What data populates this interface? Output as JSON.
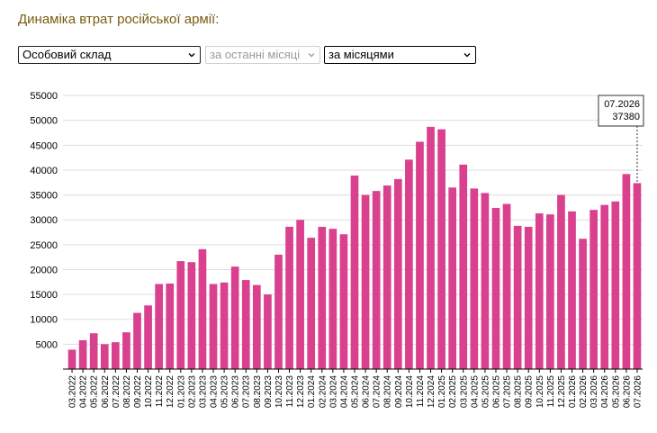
{
  "title": "Динаміка втрат російської армії:",
  "controls": {
    "category": "Особовий склад",
    "period": "за останні місяці",
    "grouping": "за місяцями"
  },
  "colors": {
    "bar": "#d9418f",
    "title": "#7a5c12",
    "grid": "#dddddd"
  },
  "tooltip": {
    "label": "07.2026",
    "value": "37380"
  },
  "chart_data": {
    "type": "bar",
    "title": "",
    "xlabel": "",
    "ylabel": "",
    "ylim": [
      0,
      57000
    ],
    "yticks": [
      5000,
      10000,
      15000,
      20000,
      25000,
      30000,
      35000,
      40000,
      45000,
      50000,
      55000
    ],
    "grid": "horizontal",
    "categories": [
      "03.2022",
      "04.2022",
      "05.2022",
      "06.2022",
      "07.2022",
      "08.2022",
      "09.2022",
      "10.2022",
      "11.2022",
      "12.2022",
      "01.2023",
      "02.2023",
      "03.2023",
      "04.2023",
      "05.2023",
      "06.2023",
      "07.2023",
      "08.2023",
      "09.2023",
      "10.2023",
      "11.2023",
      "12.2023",
      "01.2024",
      "02.2024",
      "03.2024",
      "04.2024",
      "05.2024",
      "06.2024",
      "07.2024",
      "08.2024",
      "09.2024",
      "10.2024",
      "11.2024",
      "12.2024",
      "01.2025",
      "02.2025",
      "03.2025",
      "04.2025",
      "05.2025",
      "06.2025",
      "07.2025",
      "08.2025",
      "09.2025",
      "10.2025",
      "11.2025",
      "12.2025",
      "01.2026",
      "02.2026",
      "03.2026",
      "04.2026",
      "05.2026",
      "06.2026",
      "07.2026"
    ],
    "values": [
      3900,
      5800,
      7200,
      5000,
      5400,
      7400,
      11300,
      12800,
      17100,
      17200,
      21700,
      21500,
      24100,
      17100,
      17400,
      20600,
      17900,
      16900,
      15000,
      23000,
      28600,
      30000,
      26400,
      28600,
      28200,
      27100,
      38900,
      35000,
      35800,
      36900,
      38200,
      42100,
      45700,
      48700,
      48200,
      36500,
      41100,
      36300,
      35400,
      32400,
      33200,
      28800,
      28600,
      31300,
      31100,
      35000,
      31700,
      26200,
      32000,
      33000,
      33700,
      39200,
      37380
    ]
  }
}
